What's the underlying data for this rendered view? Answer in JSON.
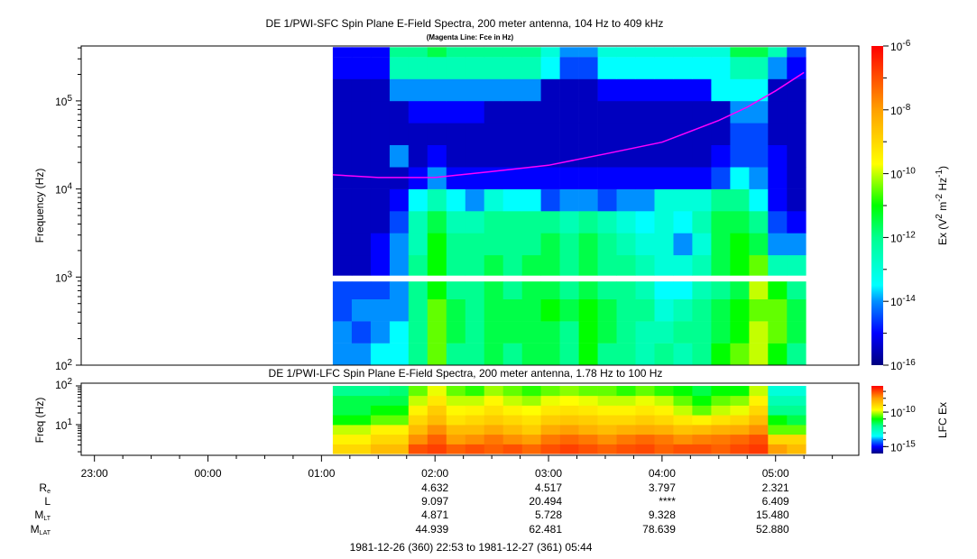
{
  "chart_data": [
    {
      "type": "heatmap",
      "title": "DE 1/PWI-SFC  Spin Plane E-Field Spectra, 200 meter antenna, 104 Hz to 409 kHz",
      "subtitle": "(Magenta Line: Fce in Hz)",
      "ylabel": "Frequency (Hz)",
      "yscale": "log",
      "ylim": [
        100,
        409000
      ],
      "yticks": [
        {
          "base": "10",
          "exp": "2"
        },
        {
          "base": "10",
          "exp": "3"
        },
        {
          "base": "10",
          "exp": "4"
        },
        {
          "base": "10",
          "exp": "5"
        }
      ],
      "time_start": "01:06",
      "bin_minutes": 10,
      "log10_freq_bins": [
        2.0,
        2.25,
        2.5,
        2.75,
        3.0,
        3.25,
        3.5,
        3.75,
        4.0,
        4.25,
        4.5,
        4.75,
        5.0,
        5.25,
        5.5,
        5.61
      ],
      "data_gap_log10_freq": [
        2.95,
        3.02
      ],
      "log10_values": [
        [
          -14,
          -14,
          -13.5,
          -13.5,
          -12,
          -10.5,
          -12,
          -12,
          -11.5,
          -12,
          -11.5,
          -11.5,
          -12,
          -11,
          -12,
          -12,
          -12.5,
          -12,
          -12.5,
          -12,
          -11,
          -10.5,
          -10,
          -11,
          -12
        ],
        [
          -14,
          -14.5,
          -14,
          -13.5,
          -12,
          -10.5,
          -11.5,
          -12,
          -11.5,
          -11.5,
          -11.5,
          -11.5,
          -12,
          -11,
          -11.5,
          -12,
          -12.5,
          -12.5,
          -12,
          -12,
          -11.5,
          -11,
          -10,
          -10.5,
          -11.5
        ],
        [
          -14.5,
          -14,
          -14,
          -14,
          -12,
          -10.5,
          -11.5,
          -12,
          -11.5,
          -11.5,
          -11.5,
          -11,
          -11.5,
          -11,
          -11.5,
          -12,
          -12,
          -13,
          -12.5,
          -12,
          -11.5,
          -11,
          -10.5,
          -10.5,
          -11.5
        ],
        [
          -14.5,
          -14.5,
          -14.5,
          -14,
          -12,
          -11,
          -12,
          -12,
          -11.5,
          -12,
          -11.5,
          -11.5,
          -12,
          -11.5,
          -12,
          -12,
          -12.5,
          -13.5,
          -13.5,
          -12.5,
          -12,
          -11.5,
          -10,
          -11,
          -12
        ],
        [
          -15.5,
          -15.5,
          -15,
          -14,
          -12,
          -11,
          -12,
          -12,
          -11.5,
          -12,
          -11.5,
          -11.5,
          -12,
          -11.5,
          -12,
          -12,
          -12.5,
          -13,
          -13,
          -12.5,
          -11.5,
          -11,
          -10.5,
          -12.5,
          -12.5
        ],
        [
          -15.5,
          -15.5,
          -15,
          -14,
          -12.5,
          -11,
          -12,
          -12,
          -12,
          -12,
          -12,
          -11.5,
          -12,
          -11.5,
          -12,
          -12.5,
          -13,
          -13,
          -14,
          -13,
          -11.5,
          -11,
          -11.5,
          -14,
          -14
        ],
        [
          -15.5,
          -15.5,
          -15.5,
          -14.5,
          -12.5,
          -11.5,
          -12.5,
          -12.5,
          -12,
          -12,
          -12,
          -12,
          -12.5,
          -12,
          -12.5,
          -13,
          -13.5,
          -13,
          -13.5,
          -12.5,
          -11.5,
          -11.5,
          -12,
          -14.5,
          -15
        ],
        [
          -15.5,
          -15.5,
          -15.5,
          -15,
          -13.5,
          -12.5,
          -13.5,
          -14,
          -13,
          -13.5,
          -13.5,
          -14.5,
          -14,
          -14,
          -14.5,
          -14,
          -14,
          -13,
          -13,
          -13,
          -12,
          -12,
          -13.5,
          -15,
          -15.5
        ],
        [
          -15.5,
          -15.5,
          -15.5,
          -15.5,
          -15,
          -14,
          -15,
          -15,
          -15,
          -15,
          -15,
          -15,
          -15,
          -15,
          -15,
          -15,
          -15,
          -15,
          -15,
          -15,
          -14.5,
          -13.5,
          -14,
          -15,
          -15.5
        ],
        [
          -15.5,
          -15.5,
          -15.5,
          -14,
          -15.5,
          -15,
          -15.5,
          -15.5,
          -15.5,
          -15.5,
          -15.5,
          -15.5,
          -15.5,
          -15.5,
          -15.5,
          -15.5,
          -15.5,
          -15.5,
          -15.5,
          -15.5,
          -15,
          -14.5,
          -14.5,
          -15,
          -15.5
        ],
        [
          -15.5,
          -15.5,
          -15.5,
          -15.5,
          -15.5,
          -15.5,
          -15.5,
          -15.5,
          -15.5,
          -15.5,
          -15.5,
          -15.5,
          -15.5,
          -15.5,
          -15.5,
          -15.5,
          -15.5,
          -15.5,
          -15.5,
          -15.5,
          -15.5,
          -14.5,
          -14.5,
          -15.5,
          -15.5
        ],
        [
          -15.5,
          -15.5,
          -15.5,
          -15.5,
          -15,
          -15,
          -15,
          -15,
          -15.5,
          -15.5,
          -15.5,
          -15.5,
          -15.5,
          -15.5,
          -15.5,
          -15.5,
          -15.5,
          -15.5,
          -15.5,
          -15.5,
          -15.5,
          -14,
          -14,
          -15.5,
          -15.5
        ],
        [
          -15.5,
          -15.5,
          -15.5,
          -14,
          -14,
          -14,
          -14,
          -14,
          -14,
          -14,
          -14,
          -15.5,
          -15.5,
          -15.5,
          -15,
          -15,
          -15,
          -15,
          -15,
          -15,
          -13.5,
          -13.5,
          -13.5,
          -15.5,
          -15.5
        ],
        [
          -15,
          -15,
          -15,
          -12.5,
          -12.5,
          -12.5,
          -12.5,
          -12.5,
          -12.5,
          -12.5,
          -12.5,
          -13.5,
          -14.5,
          -14.5,
          -13.5,
          -13.5,
          -13.5,
          -13.5,
          -13.5,
          -13.5,
          -13.5,
          -12.5,
          -12.5,
          -14,
          -15
        ],
        [
          -15,
          -15,
          -15,
          -12,
          -12,
          -11.5,
          -12,
          -12,
          -12,
          -12,
          -12,
          -13,
          -14,
          -14,
          -13,
          -13,
          -13,
          -13,
          -13,
          -13,
          -13,
          -11.5,
          -11.5,
          -12.5,
          -14.5
        ]
      ],
      "fce_line": {
        "color": "#ff00ff",
        "times": [
          "01:06",
          "01:30",
          "02:00",
          "02:30",
          "03:00",
          "03:30",
          "04:00",
          "04:30",
          "04:45",
          "05:00",
          "05:15"
        ],
        "freq_hz": [
          14500,
          13500,
          13500,
          15800,
          18600,
          25000,
          34000,
          60000,
          85000,
          130000,
          210000
        ]
      },
      "colorbar": {
        "label_main": "Ex (V",
        "label_parts": [
          {
            "t": "Ex (V"
          },
          {
            "t": "2",
            "sup": true
          },
          {
            "t": " m"
          },
          {
            "t": "-2",
            "sup": true
          },
          {
            "t": " Hz"
          },
          {
            "t": "-1",
            "sup": true
          },
          {
            "t": ")"
          }
        ],
        "log10_range": [
          -16,
          -6
        ],
        "ticks": [
          {
            "base": "10",
            "exp": "-6"
          },
          {
            "base": "10",
            "exp": "-8"
          },
          {
            "base": "10",
            "exp": "-10"
          },
          {
            "base": "10",
            "exp": "-12"
          },
          {
            "base": "10",
            "exp": "-14"
          },
          {
            "base": "10",
            "exp": "-16"
          }
        ]
      }
    },
    {
      "type": "heatmap",
      "title": "DE 1/PWI-LFC  Spin Plane E-Field Spectra, 200 meter antenna, 1.78 Hz to 100 Hz",
      "ylabel": "Freq (Hz)",
      "yscale": "log",
      "ylim": [
        1.78,
        100
      ],
      "yticks": [
        {
          "base": "10",
          "exp": "1"
        },
        {
          "base": "10",
          "exp": "2"
        }
      ],
      "time_start": "01:06",
      "bin_minutes": 10,
      "log10_freq_bins": [
        0.25,
        0.5,
        0.75,
        1.0,
        1.25,
        1.5,
        1.75,
        2.0
      ],
      "log10_values": [
        [
          -9,
          -9,
          -8.5,
          -8.5,
          -7,
          -6.8,
          -7.2,
          -7,
          -7.2,
          -7,
          -7.3,
          -7,
          -6.8,
          -7,
          -7.2,
          -7,
          -6.9,
          -7.2,
          -7,
          -7,
          -7.2,
          -6.9,
          -6.7,
          -8,
          -8.5
        ],
        [
          -9.5,
          -9.5,
          -9,
          -9,
          -7.8,
          -7.2,
          -8,
          -7.8,
          -7.5,
          -7.8,
          -8,
          -7.5,
          -7.3,
          -7.5,
          -7.8,
          -7.5,
          -7.3,
          -7.5,
          -7.8,
          -7.6,
          -7.5,
          -7.3,
          -7,
          -9,
          -9
        ],
        [
          -10,
          -10,
          -9.5,
          -9.5,
          -8.5,
          -7.8,
          -8.5,
          -8.5,
          -8.2,
          -8.5,
          -8.8,
          -8.2,
          -8,
          -8.3,
          -8.5,
          -8.3,
          -8.2,
          -8.3,
          -8.6,
          -8.5,
          -8.3,
          -8.2,
          -7.8,
          -10.5,
          -10.5
        ],
        [
          -11,
          -11,
          -10.5,
          -10.5,
          -9,
          -8.5,
          -9.2,
          -9,
          -8.8,
          -9,
          -9.2,
          -8.8,
          -8.7,
          -8.8,
          -9,
          -9,
          -8.8,
          -9,
          -9.3,
          -9.5,
          -9.2,
          -9,
          -8.5,
          -11,
          -11.5
        ],
        [
          -11.5,
          -11.5,
          -11,
          -11,
          -9.5,
          -8.8,
          -9.6,
          -9.5,
          -9.2,
          -9.5,
          -9.7,
          -9.3,
          -9.2,
          -9.3,
          -9.5,
          -9.5,
          -9.3,
          -9.5,
          -10,
          -10.5,
          -10,
          -9.8,
          -9,
          -12,
          -12
        ],
        [
          -11.5,
          -11.5,
          -11.5,
          -11.5,
          -10,
          -9.3,
          -10,
          -10,
          -9.6,
          -10,
          -10.2,
          -9.8,
          -9.7,
          -9.8,
          -10,
          -10,
          -9.8,
          -10,
          -10.5,
          -11,
          -10.5,
          -10.3,
          -9.5,
          -12.5,
          -12.5
        ],
        [
          -12,
          -12,
          -12,
          -11.8,
          -10.5,
          -9.8,
          -10.5,
          -10.8,
          -10.2,
          -10.5,
          -10.8,
          -10.5,
          -10.3,
          -10.5,
          -10.5,
          -10.8,
          -10.5,
          -10.8,
          -11,
          -11.5,
          -11,
          -11,
          -10,
          -13,
          -13
        ]
      ],
      "colorbar": {
        "label": "LFC Ex",
        "log10_range": [
          -16,
          -6.2
        ],
        "ticks": [
          {
            "base": "10",
            "exp": "-10"
          },
          {
            "base": "10",
            "exp": "-15"
          }
        ]
      }
    }
  ],
  "time_axis": {
    "range": [
      "22:53",
      "05:44"
    ],
    "tick_labels": [
      "23:00",
      "00:00",
      "01:00",
      "02:00",
      "03:00",
      "04:00",
      "05:00"
    ]
  },
  "ephemeris": {
    "rows": [
      {
        "label": "R",
        "sub": "e",
        "values": [
          "",
          "",
          "",
          "4.632",
          "4.517",
          "3.797",
          "2.321"
        ]
      },
      {
        "label": "L",
        "sub": "",
        "values": [
          "",
          "",
          "",
          "9.097",
          "20.494",
          "****",
          "6.409"
        ]
      },
      {
        "label": "M",
        "sub": "LT",
        "values": [
          "",
          "",
          "",
          "4.871",
          "5.728",
          "9.328",
          "15.480"
        ]
      },
      {
        "label": "M",
        "sub": "LAT",
        "values": [
          "",
          "",
          "",
          "44.939",
          "62.481",
          "78.639",
          "52.880"
        ]
      }
    ],
    "date_range": "1981-12-26 (360) 22:53 to 1981-12-27 (361) 05:44"
  },
  "colormap": {
    "stops": [
      {
        "v": -16,
        "c": "#00007f"
      },
      {
        "v": -15,
        "c": "#0000ff"
      },
      {
        "v": -14,
        "c": "#0090ff"
      },
      {
        "v": -13.5,
        "c": "#00ffff"
      },
      {
        "v": -12,
        "c": "#00ff90"
      },
      {
        "v": -11,
        "c": "#00ff00"
      },
      {
        "v": -9.7,
        "c": "#ffff00"
      },
      {
        "v": -8,
        "c": "#ffa000"
      },
      {
        "v": -6,
        "c": "#ff0000"
      }
    ]
  }
}
